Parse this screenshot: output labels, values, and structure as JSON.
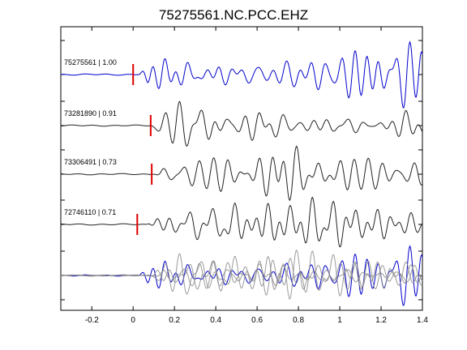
{
  "chart_data": {
    "type": "line",
    "title": "75275561.NC.PCC.EHZ",
    "xlim": [
      -0.35,
      1.4
    ],
    "x_ticks": [
      -0.2,
      0,
      0.2,
      0.4,
      0.6,
      0.8,
      1,
      1.2,
      1.4
    ],
    "x_tick_labels": [
      "-0.2",
      "0",
      "0.2",
      "0.4",
      "0.6",
      "0.8",
      "1",
      "1.2",
      "1.4"
    ],
    "xlabel": "",
    "ylabel": "",
    "grid": false,
    "colors": {
      "reference": "#0000cc",
      "other": "#222222",
      "stack_other": "#8a8a8a",
      "pick": "#dd0000"
    },
    "series": [
      {
        "name": "75275561 | 1.00",
        "pick_time": 0.0,
        "color": "#0000cc",
        "onset": 0.02,
        "scale": 1.0,
        "seed": 3
      },
      {
        "name": "73281890 | 0.91",
        "pick_time": 0.085,
        "color": "#222222",
        "onset": 0.08,
        "scale": 0.9,
        "seed": 7
      },
      {
        "name": "73306491 | 0.73",
        "pick_time": 0.09,
        "color": "#222222",
        "onset": 0.09,
        "scale": 0.95,
        "seed": 11
      },
      {
        "name": "72746110 | 0.71",
        "pick_time": 0.02,
        "color": "#222222",
        "onset": 0.06,
        "scale": 1.0,
        "seed": 17
      }
    ]
  }
}
